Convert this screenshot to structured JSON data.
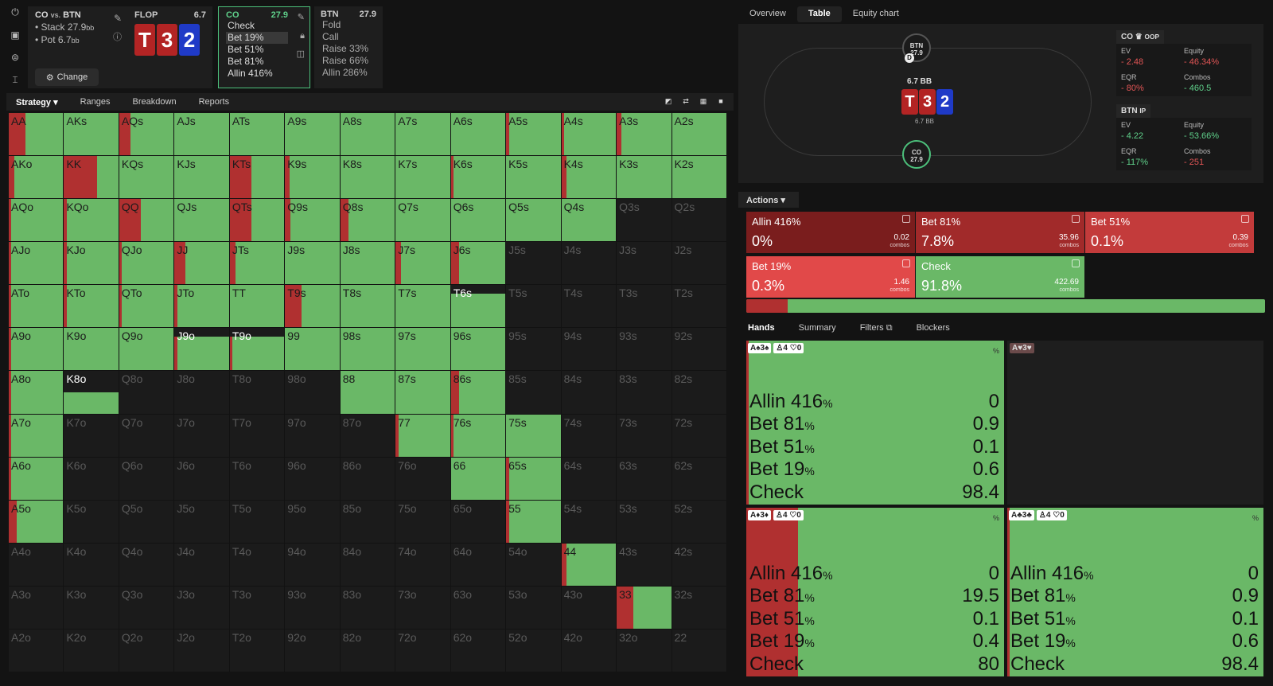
{
  "sidebar_icons": [
    "power-icon",
    "save-icon",
    "gamepad-icon",
    "text-cursor-icon"
  ],
  "scenario": {
    "title": "CO",
    "vs": "vs.",
    "title2": "BTN",
    "stack_label": "Stack 27.9",
    "pot_label": "Pot 6.7",
    "bb": "bb",
    "change": "Change"
  },
  "flop": {
    "label": "FLOP",
    "pot": "6.7",
    "cards": [
      "T",
      "3",
      "2"
    ]
  },
  "co": {
    "label": "CO",
    "stack": "27.9",
    "actions": [
      "Check",
      "Bet 19%",
      "Bet 51%",
      "Bet 81%",
      "Allin 416%"
    ],
    "selected": 1
  },
  "btn": {
    "label": "BTN",
    "stack": "27.9",
    "actions": [
      "Fold",
      "Call",
      "Raise 33%",
      "Raise 66%",
      "Allin 286%"
    ]
  },
  "tabs": [
    "Strategy",
    "Ranges",
    "Breakdown",
    "Reports"
  ],
  "right_tabs": [
    "Overview",
    "Table",
    "Equity chart"
  ],
  "table": {
    "btn_name": "BTN",
    "btn_stack": "27.9",
    "co_name": "CO",
    "co_stack": "27.9",
    "dealer": "D",
    "pot": "6.7 BB",
    "pot_small": "6.7 BB",
    "cards": [
      "T",
      "3",
      "2"
    ]
  },
  "stats": {
    "co": {
      "title": "CO",
      "pos": "OOP",
      "ev_label": "EV",
      "ev": "- 2.48",
      "equity_label": "Equity",
      "equity": "- 46.34%",
      "eqr_label": "EQR",
      "eqr": "- 80%",
      "combos_label": "Combos",
      "combos": "- 460.5"
    },
    "btn": {
      "title": "BTN",
      "pos": "IP",
      "ev_label": "EV",
      "ev": "- 4.22",
      "equity_label": "Equity",
      "equity": "- 53.66%",
      "eqr_label": "EQR",
      "eqr": "- 117%",
      "combos_label": "Combos",
      "combos": "- 251"
    }
  },
  "actions_label": "Actions",
  "action_boxes": [
    {
      "name": "Allin 416%",
      "pct": "0%",
      "combos": "0.02",
      "color": "#7a1d1d"
    },
    {
      "name": "Bet 81%",
      "pct": "7.8%",
      "combos": "35.96",
      "color": "#a12a2a"
    },
    {
      "name": "Bet 51%",
      "pct": "0.1%",
      "combos": "0.39",
      "color": "#c33b3b"
    },
    {
      "name": "Bet 19%",
      "pct": "0.3%",
      "combos": "1.46",
      "color": "#e14949"
    },
    {
      "name": "Check",
      "pct": "91.8%",
      "combos": "422.69",
      "color": "#6ab867"
    }
  ],
  "combos_word": "combos",
  "aggr_fraction": 0.08,
  "hand_tabs": [
    "Hands",
    "Summary",
    "Filters",
    "Blockers"
  ],
  "hands": [
    {
      "cards": "A♠3♠",
      "blk": "♙4 ♡0",
      "aggr": 0.01,
      "rows": [
        [
          "Allin 416",
          "0"
        ],
        [
          "Bet 81",
          "0.9"
        ],
        [
          "Bet 51",
          "0.1"
        ],
        [
          "Bet 19",
          "0.6"
        ],
        [
          "Check",
          "98.4"
        ]
      ]
    },
    {
      "cards": "A♦3♦",
      "blk": "♙4 ♡0",
      "aggr": 0.2,
      "rows": [
        [
          "Allin 416",
          "0"
        ],
        [
          "Bet 81",
          "19.5"
        ],
        [
          "Bet 51",
          "0.1"
        ],
        [
          "Bet 19",
          "0.4"
        ],
        [
          "Check",
          "80"
        ]
      ]
    },
    {
      "cards": "A♣3♣",
      "blk": "♙4 ♡0",
      "aggr": 0.01,
      "rows": [
        [
          "Allin 416",
          "0"
        ],
        [
          "Bet 81",
          "0.9"
        ],
        [
          "Bet 51",
          "0.1"
        ],
        [
          "Bet 19",
          "0.6"
        ],
        [
          "Check",
          "98.4"
        ]
      ]
    }
  ],
  "empty_hand": "A♥3♥",
  "pct_sign": "%",
  "chart_data": {
    "type": "heatmap",
    "ranks": [
      "A",
      "K",
      "Q",
      "J",
      "T",
      "9",
      "8",
      "7",
      "6",
      "5",
      "4",
      "3",
      "2"
    ],
    "note_levels": "each cell: [range_weight 0-1, aggressive_fraction 0-1]",
    "cells": [
      [
        [
          1,
          0.3
        ],
        [
          1,
          0
        ],
        [
          1,
          0.2
        ],
        [
          1,
          0
        ],
        [
          1,
          0
        ],
        [
          1,
          0
        ],
        [
          1,
          0
        ],
        [
          1,
          0
        ],
        [
          1,
          0
        ],
        [
          1,
          0.05
        ],
        [
          1,
          0.05
        ],
        [
          1,
          0.08
        ],
        [
          1,
          0
        ]
      ],
      [
        [
          1,
          0.1
        ],
        [
          1,
          0.6
        ],
        [
          1,
          0
        ],
        [
          1,
          0
        ],
        [
          1,
          0.4
        ],
        [
          1,
          0.08
        ],
        [
          1,
          0
        ],
        [
          1,
          0
        ],
        [
          1,
          0.05
        ],
        [
          1,
          0
        ],
        [
          1,
          0.1
        ],
        [
          1,
          0
        ],
        [
          1,
          0
        ]
      ],
      [
        [
          1,
          0.05
        ],
        [
          1,
          0.05
        ],
        [
          1,
          0.4
        ],
        [
          1,
          0
        ],
        [
          1,
          0.4
        ],
        [
          1,
          0.1
        ],
        [
          1,
          0.15
        ],
        [
          1,
          0
        ],
        [
          1,
          0
        ],
        [
          1,
          0
        ],
        [
          1,
          0
        ],
        [
          0,
          0
        ],
        [
          0,
          0
        ]
      ],
      [
        [
          1,
          0.05
        ],
        [
          1,
          0.05
        ],
        [
          1,
          0.05
        ],
        [
          1,
          0.2
        ],
        [
          1,
          0.1
        ],
        [
          1,
          0
        ],
        [
          1,
          0
        ],
        [
          1,
          0.1
        ],
        [
          1,
          0.15
        ],
        [
          0,
          0
        ],
        [
          0,
          0
        ],
        [
          0,
          0
        ],
        [
          0,
          0
        ]
      ],
      [
        [
          1,
          0.05
        ],
        [
          1,
          0.05
        ],
        [
          1,
          0.05
        ],
        [
          1,
          0.05
        ],
        [
          1,
          0
        ],
        [
          1,
          0.3
        ],
        [
          1,
          0
        ],
        [
          1,
          0
        ],
        [
          0.8,
          0
        ],
        [
          0,
          0
        ],
        [
          0,
          0
        ],
        [
          0,
          0
        ],
        [
          0,
          0
        ]
      ],
      [
        [
          1,
          0.05
        ],
        [
          1,
          0
        ],
        [
          1,
          0
        ],
        [
          0.8,
          0.05
        ],
        [
          0.8,
          0.05
        ],
        [
          1,
          0
        ],
        [
          1,
          0
        ],
        [
          1,
          0
        ],
        [
          1,
          0
        ],
        [
          0,
          0
        ],
        [
          0,
          0
        ],
        [
          0,
          0
        ],
        [
          0,
          0
        ]
      ],
      [
        [
          1,
          0.05
        ],
        [
          0.5,
          0
        ],
        [
          0,
          0
        ],
        [
          0,
          0
        ],
        [
          0,
          0
        ],
        [
          0,
          0
        ],
        [
          1,
          0
        ],
        [
          1,
          0
        ],
        [
          1,
          0.15
        ],
        [
          0,
          0
        ],
        [
          0,
          0
        ],
        [
          0,
          0
        ],
        [
          0,
          0
        ]
      ],
      [
        [
          1,
          0.05
        ],
        [
          0,
          0
        ],
        [
          0,
          0
        ],
        [
          0,
          0
        ],
        [
          0,
          0
        ],
        [
          0,
          0
        ],
        [
          0,
          0
        ],
        [
          1,
          0.05
        ],
        [
          1,
          0.05
        ],
        [
          1,
          0
        ],
        [
          0,
          0
        ],
        [
          0,
          0
        ],
        [
          0,
          0
        ]
      ],
      [
        [
          1,
          0.05
        ],
        [
          0,
          0
        ],
        [
          0,
          0
        ],
        [
          0,
          0
        ],
        [
          0,
          0
        ],
        [
          0,
          0
        ],
        [
          0,
          0
        ],
        [
          0,
          0
        ],
        [
          1,
          0
        ],
        [
          1,
          0.05
        ],
        [
          0,
          0
        ],
        [
          0,
          0
        ],
        [
          0,
          0
        ]
      ],
      [
        [
          1,
          0.15
        ],
        [
          0,
          0
        ],
        [
          0,
          0
        ],
        [
          0,
          0
        ],
        [
          0,
          0
        ],
        [
          0,
          0
        ],
        [
          0,
          0
        ],
        [
          0,
          0
        ],
        [
          0,
          0
        ],
        [
          1,
          0.05
        ],
        [
          0,
          0
        ],
        [
          0,
          0
        ],
        [
          0,
          0
        ]
      ],
      [
        [
          0,
          0
        ],
        [
          0,
          0
        ],
        [
          0,
          0
        ],
        [
          0,
          0
        ],
        [
          0,
          0
        ],
        [
          0,
          0
        ],
        [
          0,
          0
        ],
        [
          0,
          0
        ],
        [
          0,
          0
        ],
        [
          0,
          0
        ],
        [
          1,
          0.1
        ],
        [
          0,
          0
        ],
        [
          0,
          0
        ]
      ],
      [
        [
          0,
          0
        ],
        [
          0,
          0
        ],
        [
          0,
          0
        ],
        [
          0,
          0
        ],
        [
          0,
          0
        ],
        [
          0,
          0
        ],
        [
          0,
          0
        ],
        [
          0,
          0
        ],
        [
          0,
          0
        ],
        [
          0,
          0
        ],
        [
          0,
          0
        ],
        [
          1,
          0.3
        ],
        [
          0,
          0
        ]
      ],
      [
        [
          0,
          0
        ],
        [
          0,
          0
        ],
        [
          0,
          0
        ],
        [
          0,
          0
        ],
        [
          0,
          0
        ],
        [
          0,
          0
        ],
        [
          0,
          0
        ],
        [
          0,
          0
        ],
        [
          0,
          0
        ],
        [
          0,
          0
        ],
        [
          0,
          0
        ],
        [
          0,
          0
        ],
        [
          0,
          0
        ]
      ]
    ]
  }
}
